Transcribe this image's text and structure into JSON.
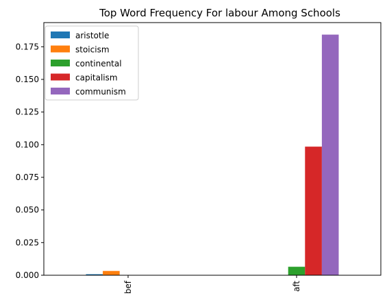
{
  "chart_data": {
    "type": "bar",
    "title": "Top Word Frequency For labour Among Schools",
    "xlabel": "",
    "ylabel": "",
    "categories": [
      "bef",
      "aft"
    ],
    "series": [
      {
        "name": "aristotle",
        "color": "#1f77b4",
        "values": [
          0.0008,
          0.0
        ]
      },
      {
        "name": "stoicism",
        "color": "#ff7f0e",
        "values": [
          0.0033,
          0.0
        ]
      },
      {
        "name": "continental",
        "color": "#2ca02c",
        "values": [
          0.0,
          0.0065
        ]
      },
      {
        "name": "capitalism",
        "color": "#d62728",
        "values": [
          0.0,
          0.0985
        ]
      },
      {
        "name": "communism",
        "color": "#9467bd",
        "values": [
          0.0,
          0.1843
        ]
      }
    ],
    "ylim": [
      0,
      0.1935
    ],
    "yticks": [
      "0.000",
      "0.025",
      "0.050",
      "0.075",
      "0.100",
      "0.125",
      "0.150",
      "0.175"
    ],
    "grid": false,
    "legend_position": "top-left"
  }
}
